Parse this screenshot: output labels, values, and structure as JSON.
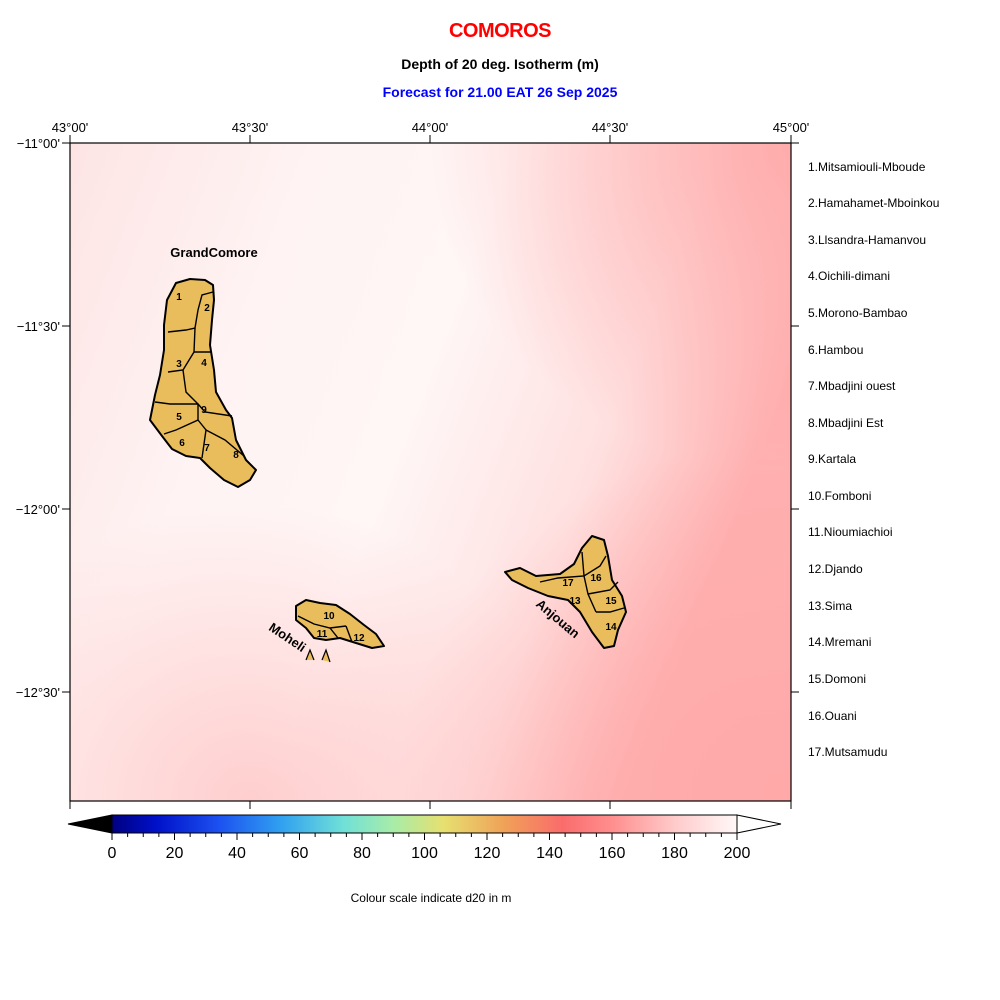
{
  "header": {
    "title": "COMOROS",
    "subtitle": "Depth of 20 deg. Isotherm (m)",
    "forecast": "Forecast for  21.00 EAT 26 Sep 2025"
  },
  "map": {
    "lon_ticks": [
      "43°00'",
      "43°30'",
      "44°00'",
      "44°30'",
      "45°00'"
    ],
    "lat_ticks": [
      "−11°00'",
      "−11°30'",
      "−12°00'",
      "−12°30'"
    ],
    "island_labels": {
      "grand_comore": "GrandComore",
      "moheli": "Moheli",
      "anjouan": "Anjouan"
    },
    "region_numbers": [
      "1",
      "2",
      "3",
      "4",
      "5",
      "6",
      "7",
      "8",
      "9",
      "10",
      "11",
      "12",
      "13",
      "14",
      "15",
      "16",
      "17"
    ],
    "legend": [
      "1.Mitsamiouli-Mboude",
      "2.Hamahamet-Mboinkou",
      "3.Llsandra-Hamanvou",
      "4.Oichili-dimani",
      "5.Morono-Bambao",
      "6.Hambou",
      "7.Mbadjini ouest",
      "8.Mbadjini Est",
      "9.Kartala",
      "10.Fomboni",
      "11.Nioumiachioi",
      "12.Djando",
      "13.Sima",
      "14.Mremani",
      "15.Domoni",
      "16.Ouani",
      "17.Mutsamudu"
    ],
    "colors": {
      "land": "#e9bc5c",
      "sea_deep": "#ffadad",
      "sea_light": "#fff4f4"
    }
  },
  "colorbar": {
    "ticks": [
      "0",
      "20",
      "40",
      "60",
      "80",
      "100",
      "120",
      "140",
      "160",
      "180",
      "200"
    ],
    "caption": "Colour scale indicate d20 in m"
  }
}
